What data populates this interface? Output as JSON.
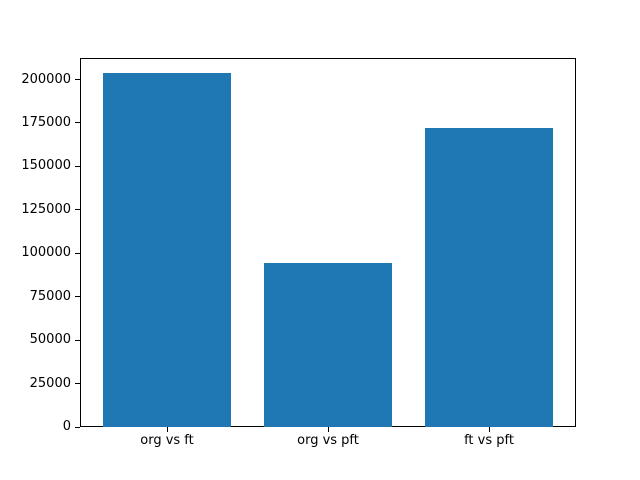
{
  "figure": {
    "background": "#ffffff",
    "spine_color": "#000000",
    "text_color": "#000000"
  },
  "chart_data": {
    "type": "bar",
    "categories": [
      "org vs ft",
      "org vs pft",
      "ft vs pft"
    ],
    "values": [
      204000,
      94500,
      172000
    ],
    "title": "",
    "xlabel": "",
    "ylabel": "",
    "ylim": [
      0,
      212400
    ],
    "yticks": [
      0,
      25000,
      50000,
      75000,
      100000,
      125000,
      150000,
      175000,
      200000
    ],
    "bar_color": "#1f77b4",
    "bar_width_fraction": 0.8,
    "grid": false,
    "legend": "none"
  }
}
